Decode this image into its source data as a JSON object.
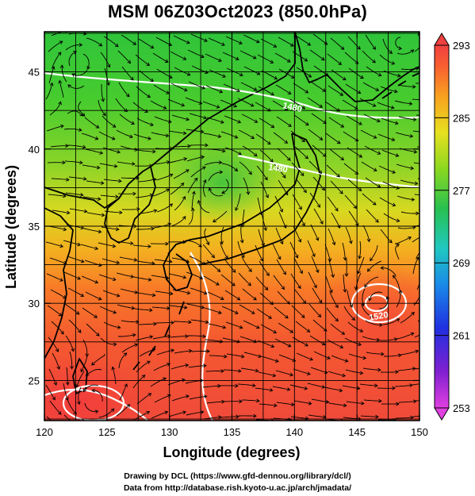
{
  "title": "MSM 06Z03Oct2023 (850.0hPa)",
  "x_axis": {
    "label": "Longitude (degrees)",
    "min": 120,
    "max": 150,
    "ticks": [
      "120",
      "125",
      "130",
      "135",
      "140",
      "145",
      "150"
    ]
  },
  "y_axis": {
    "label": "Latitude  (degrees)",
    "min": 22.4,
    "max": 47.6,
    "ticks": [
      "25",
      "30",
      "35",
      "40",
      "45"
    ]
  },
  "colorbar": {
    "min": 253,
    "max": 293,
    "ticks": [
      "293",
      "285",
      "277",
      "269",
      "261",
      "253"
    ],
    "colors": [
      "#e040e0",
      "#8020d0",
      "#2040e0",
      "#20a0e0",
      "#20c8b0",
      "#30c050",
      "#90d820",
      "#e8e020",
      "#f8a020",
      "#f86030",
      "#f04040"
    ]
  },
  "contour_labels": [
    "1480",
    "1480",
    "1520"
  ],
  "footer": {
    "line1": "Drawing by DCL (https://www.gfd-dennou.org/library/dcl/)",
    "line2": "Data from http://database.rish.kyoto-u.ac.jp/arch/jmadata/"
  }
}
